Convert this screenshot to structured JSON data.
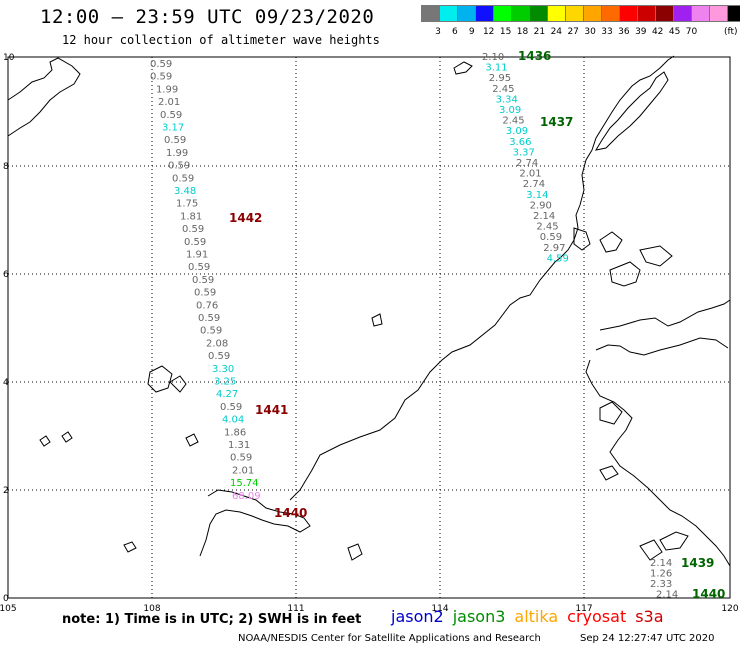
{
  "header": {
    "title": "12:00 — 23:59 UTC 09/23/2020",
    "subtitle": "12 hour collection of altimeter wave heights"
  },
  "color_scale": {
    "swatches": [
      "#777777",
      "#00eeee",
      "#00b2ee",
      "#1010ff",
      "#00ff00",
      "#00cd00",
      "#008b00",
      "#ffff00",
      "#ffd700",
      "#ffa500",
      "#ff6a00",
      "#ff0000",
      "#cd0000",
      "#8b0000",
      "#a020f0",
      "#ee82ee",
      "#ff99dd",
      "#000000"
    ],
    "labels": [
      "3",
      "6",
      "9",
      "12",
      "15",
      "18",
      "21",
      "24",
      "27",
      "30",
      "33",
      "36",
      "39",
      "42",
      "45",
      "70"
    ],
    "unit": "(ft)"
  },
  "axes": {
    "x_ticks": [
      "105",
      "108",
      "111",
      "114",
      "117",
      "120"
    ],
    "y_ticks": [
      "0",
      "2",
      "4",
      "6",
      "8",
      "10"
    ]
  },
  "passes": [
    {
      "id": "1436",
      "color": "#006400"
    },
    {
      "id": "1437",
      "color": "#006400"
    },
    {
      "id": "1442",
      "color": "#8b0000"
    },
    {
      "id": "1441",
      "color": "#8b0000"
    },
    {
      "id": "1440",
      "color": "#8b0000"
    },
    {
      "id": "1439",
      "color": "#006400"
    },
    {
      "id": "1440",
      "color": "#006400"
    }
  ],
  "observations": {
    "track_west": [
      "0.59",
      "0.59",
      "1.99",
      "2.01",
      "0.59",
      "3.17",
      "0.59",
      "1.99",
      "0.59",
      "0.59",
      "3.48",
      "1.75",
      "1.81",
      "0.59",
      "0.59",
      "1.91",
      "0.59",
      "0.59",
      "0.59",
      "0.76",
      "0.59",
      "0.59",
      "2.08",
      "0.59",
      "3.30",
      "3.25",
      "4.27",
      "0.59",
      "4.04",
      "1.86",
      "1.31",
      "0.59",
      "2.01",
      "15.74",
      "68.09"
    ],
    "track_east": [
      "2.10",
      "3.11",
      "2.95",
      "2.45",
      "3.34",
      "3.09",
      "2.45",
      "3.09",
      "3.66",
      "3.37",
      "2.74",
      "2.01",
      "2.74",
      "3.14",
      "2.90",
      "2.14",
      "2.45",
      "0.59",
      "2.97",
      "4.59"
    ],
    "track_se": [
      "2.14",
      "1.26",
      "2.33",
      "2.14"
    ]
  },
  "footer": {
    "note": "note:  1) Time is in UTC;  2) SWH is in feet",
    "satellites": [
      {
        "name": "jason2",
        "color": "#0000cd"
      },
      {
        "name": "jason3",
        "color": "#008b00"
      },
      {
        "name": "altika",
        "color": "#ffa500"
      },
      {
        "name": "cryosat",
        "color": "#ff0000"
      },
      {
        "name": "s3a",
        "color": "#cd0000"
      }
    ],
    "credit": "NOAA/NESDIS Center for Satellite Applications and Research",
    "timestamp": "Sep 24 12:27:47 UTC 2020"
  }
}
